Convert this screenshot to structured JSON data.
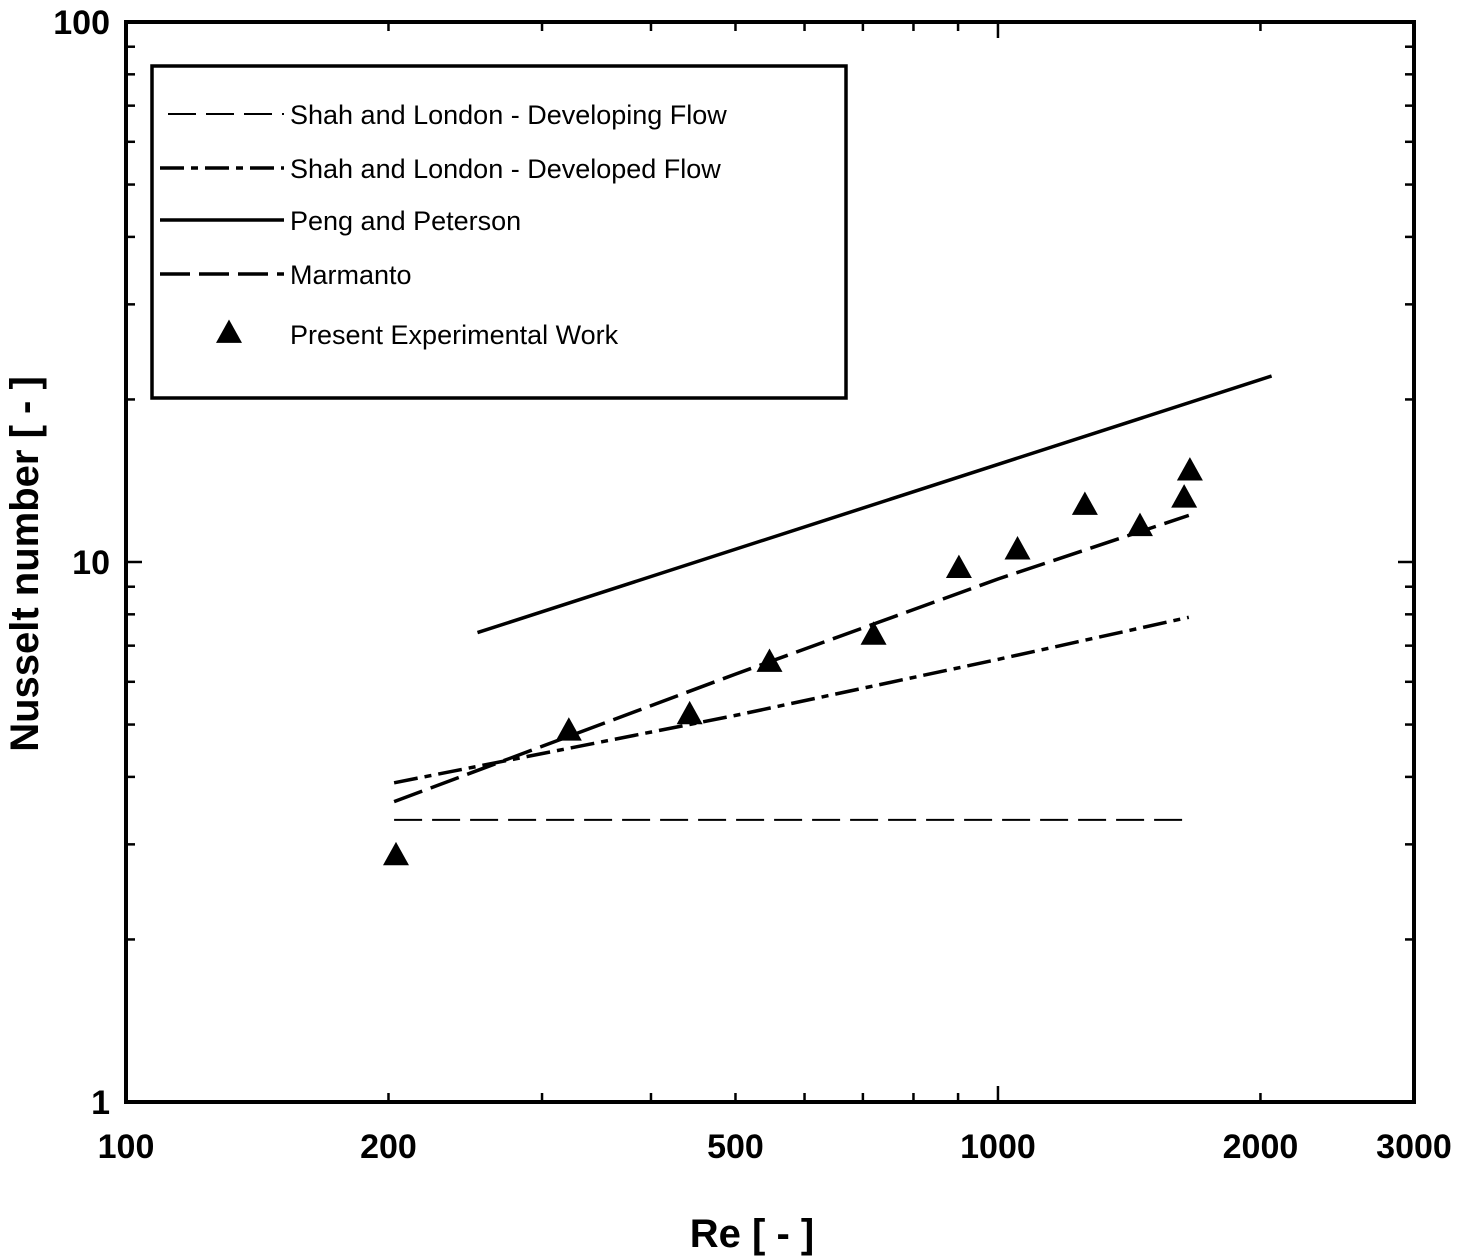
{
  "chart_data": {
    "type": "line",
    "xlabel": "Re  [ - ]",
    "ylabel": "Nusselt number [ - ]",
    "xscale": "log",
    "yscale": "log",
    "xlim": [
      100,
      3000
    ],
    "ylim": [
      1,
      100
    ],
    "x_tick_labels": [
      {
        "value": 100,
        "label": "100"
      },
      {
        "value": 200,
        "label": "200"
      },
      {
        "value": 500,
        "label": "500"
      },
      {
        "value": 1000,
        "label": "1000"
      },
      {
        "value": 2000,
        "label": "2000"
      },
      {
        "value": 3000,
        "label": "3000"
      }
    ],
    "y_tick_labels": [
      {
        "value": 1,
        "label": "1"
      },
      {
        "value": 10,
        "label": "10"
      },
      {
        "value": 100,
        "label": "100"
      }
    ],
    "grid": false,
    "legend_position": "top-left",
    "series": [
      {
        "name": "Shah and London - Developing Flow",
        "style": "long-dash-thin",
        "x": [
          203,
          1655
        ],
        "y": [
          3.33,
          3.33
        ]
      },
      {
        "name": "Shah and London - Developed Flow",
        "style": "dash-dot",
        "x": [
          203,
          500,
          1000,
          1655
        ],
        "y": [
          3.9,
          5.2,
          6.6,
          7.9
        ]
      },
      {
        "name": "Peng and Peterson",
        "style": "solid",
        "x": [
          253,
          2060
        ],
        "y": [
          7.4,
          22.1
        ]
      },
      {
        "name": "Marmanto",
        "style": "long-dash",
        "x": [
          203,
          500,
          1000,
          1655
        ],
        "y": [
          3.6,
          6.2,
          9.3,
          12.2
        ]
      },
      {
        "name": "Present Experimental Work",
        "style": "triangle-markers",
        "x": [
          204,
          322,
          443,
          547,
          720,
          902,
          1053,
          1258,
          1455,
          1635,
          1660
        ],
        "y": [
          2.85,
          4.85,
          5.2,
          6.5,
          7.3,
          9.7,
          10.5,
          12.7,
          11.6,
          13.1,
          14.7
        ]
      }
    ],
    "colors": {
      "line": "#000000",
      "background": "#ffffff"
    }
  }
}
